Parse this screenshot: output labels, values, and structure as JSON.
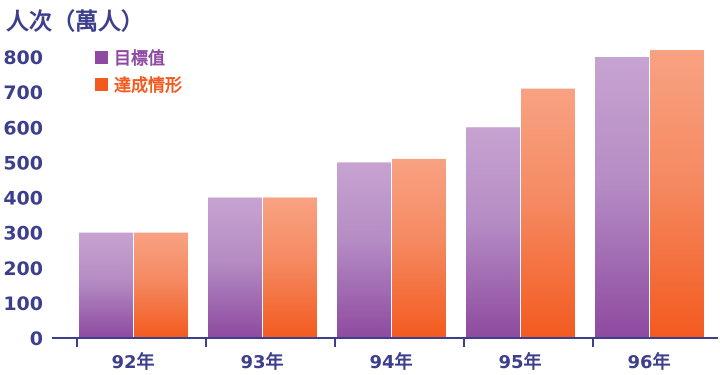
{
  "chart_data": {
    "type": "bar",
    "title": "人次（萬人）",
    "categories": [
      "92年",
      "93年",
      "94年",
      "95年",
      "96年"
    ],
    "series": [
      {
        "name": "目標值",
        "color": "#8e4aa0",
        "values": [
          300,
          400,
          500,
          600,
          800
        ]
      },
      {
        "name": "達成情形",
        "color": "#f35a1f",
        "values": [
          300,
          400,
          510,
          710,
          820
        ]
      }
    ],
    "ylim": [
      0,
      800
    ],
    "yticks": [
      "0",
      "100",
      "200",
      "300",
      "400",
      "500",
      "600",
      "700",
      "800"
    ],
    "legend": "top-left",
    "grid": false
  }
}
